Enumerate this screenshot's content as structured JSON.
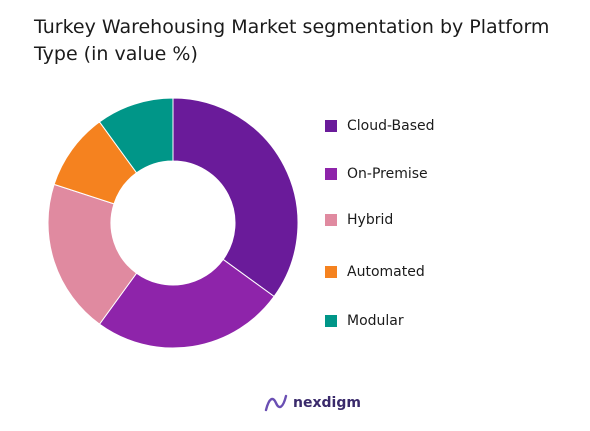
{
  "chart_data": {
    "type": "pie",
    "title": "Turkey Warehousing Market segmentation by Platform Type (in value %)",
    "categories": [
      "Cloud-Based",
      "On-Premise",
      "Hybrid",
      "Automated",
      "Modular"
    ],
    "values": [
      35,
      25,
      20,
      10,
      10
    ],
    "colors": [
      "#6a1b9a",
      "#8e24aa",
      "#e08aa0",
      "#f5821f",
      "#009688"
    ],
    "donut": true,
    "legend_position": "right"
  },
  "brand": {
    "name": "nexdigm",
    "color": "#3a2a6b",
    "icon": "nexdigm-logo-icon"
  }
}
